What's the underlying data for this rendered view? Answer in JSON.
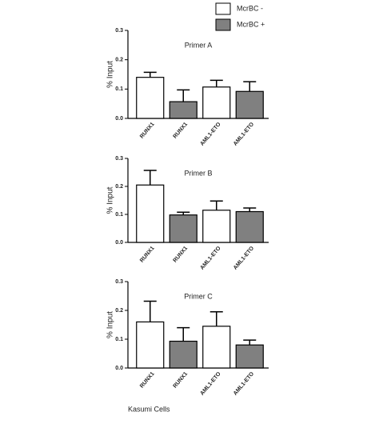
{
  "legend": [
    {
      "name": "McrBC -",
      "color": "#ffffff"
    },
    {
      "name": "McrBC +",
      "color": "#808080"
    }
  ],
  "chart_data": [
    {
      "type": "bar",
      "title": "Primer A",
      "y_label": "% Input",
      "categories": [
        "RUNX1",
        "RUNX1",
        "AML1-ETO",
        "AML1-ETO"
      ],
      "values": [
        0.14,
        0.057,
        0.107,
        0.092
      ],
      "errors": [
        0.017,
        0.04,
        0.023,
        0.033
      ],
      "colors": [
        "#ffffff",
        "#808080",
        "#ffffff",
        "#808080"
      ],
      "ylim": [
        0,
        0.3
      ],
      "yticks": [
        {
          "value": 0,
          "label": "0.0"
        },
        0.1,
        0.2,
        0.3
      ]
    },
    {
      "type": "bar",
      "title": "Primer B",
      "y_label": "% Input",
      "categories": [
        "RUNX1",
        "RUNX1",
        "AML1-ETO",
        "AML1-ETO"
      ],
      "values": [
        0.205,
        0.098,
        0.115,
        0.11
      ],
      "errors": [
        0.052,
        0.01,
        0.033,
        0.013
      ],
      "colors": [
        "#ffffff",
        "#808080",
        "#ffffff",
        "#808080"
      ],
      "ylim": [
        0,
        0.3
      ],
      "yticks": [
        {
          "value": 0,
          "label": "0.0"
        },
        0.1,
        0.2,
        0.3
      ]
    },
    {
      "type": "bar",
      "title": "Primer C",
      "y_label": "% Input",
      "categories": [
        "RUNX1",
        "RUNX1",
        "AML1-ETO",
        "AML1-ETO"
      ],
      "values": [
        0.16,
        0.093,
        0.145,
        0.08
      ],
      "errors": [
        0.072,
        0.047,
        0.05,
        0.017
      ],
      "colors": [
        "#ffffff",
        "#808080",
        "#ffffff",
        "#808080"
      ],
      "ylim": [
        0,
        0.3
      ],
      "yticks": [
        {
          "value": 0,
          "label": "0.0"
        },
        0.1,
        0.2,
        0.3
      ]
    }
  ],
  "footer": "Kasumi Cells"
}
